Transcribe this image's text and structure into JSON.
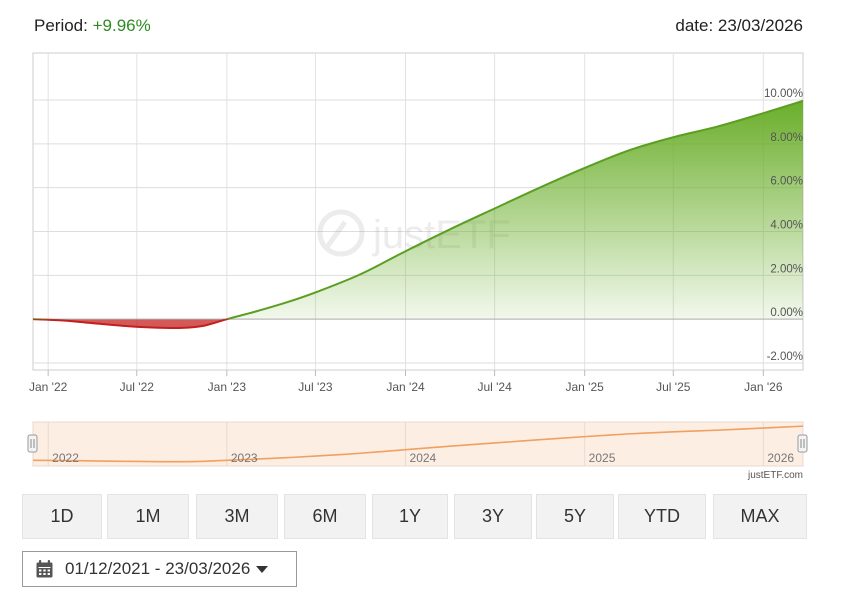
{
  "header": {
    "period_label": "Period:",
    "period_value": "+9.96%",
    "date_label": "date: 23/03/2026"
  },
  "chart_data": {
    "type": "area",
    "x_tick_labels": [
      "Jan '22",
      "Jul '22",
      "Jan '23",
      "Jul '23",
      "Jan '24",
      "Jul '24",
      "Jan '25",
      "Jul '25",
      "Jan '26"
    ],
    "y_tick_labels": [
      "10.00%",
      "8.00%",
      "6.00%",
      "4.00%",
      "2.00%",
      "0.00%",
      "-2.00%"
    ],
    "ylim": [
      -2,
      10
    ],
    "y_ticks": [
      10,
      8,
      6,
      4,
      2,
      0,
      -2
    ],
    "x_dates": [
      "2022-01-01",
      "2022-07-01",
      "2023-01-01",
      "2023-07-01",
      "2024-01-01",
      "2024-07-01",
      "2025-01-01",
      "2025-07-01",
      "2026-01-01"
    ],
    "xlim": [
      "2021-12-01",
      "2026-03-23"
    ],
    "series": [
      {
        "x": [
          "2021-12-01",
          "2022-02-01",
          "2022-04-01",
          "2022-06-01",
          "2022-08-01",
          "2022-10-01",
          "2022-11-15",
          "2023-01-01",
          "2023-03-01",
          "2023-05-01",
          "2023-07-01",
          "2023-10-01",
          "2024-01-01",
          "2024-04-01",
          "2024-07-01",
          "2024-10-01",
          "2025-01-01",
          "2025-04-01",
          "2025-07-01",
          "2025-10-01",
          "2026-01-01",
          "2026-03-23"
        ],
        "y": [
          0.0,
          -0.06,
          -0.18,
          -0.3,
          -0.38,
          -0.4,
          -0.3,
          0.0,
          0.35,
          0.75,
          1.22,
          2.05,
          3.1,
          4.1,
          5.05,
          6.0,
          6.9,
          7.7,
          8.3,
          8.8,
          9.4,
          9.96
        ]
      }
    ],
    "positive_color": "#6aae2a",
    "negative_color": "#c41e1e",
    "grid": true,
    "watermark": "justETF",
    "navigator": {
      "year_labels": [
        "2022",
        "2023",
        "2024",
        "2025",
        "2026"
      ],
      "line_color": "#f0a060",
      "background": "#fdeee4"
    },
    "credit": "justETF.com"
  },
  "range_buttons": [
    "1D",
    "1M",
    "3M",
    "6M",
    "1Y",
    "3Y",
    "5Y",
    "YTD",
    "MAX"
  ],
  "date_range": {
    "text": "01/12/2021 - 23/03/2026",
    "icon": "calendar-icon"
  }
}
